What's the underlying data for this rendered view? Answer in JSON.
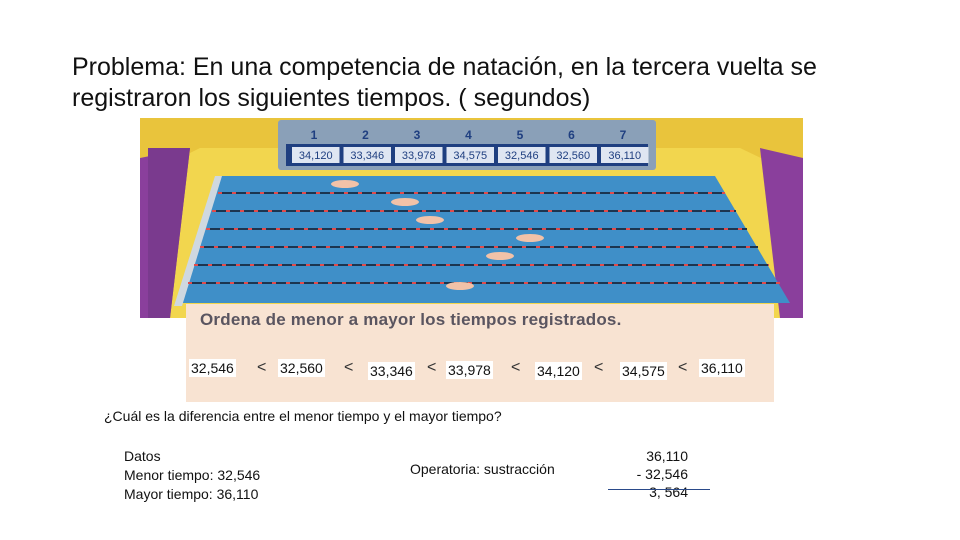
{
  "problem": {
    "line1": "Problema: En una competencia de natación, en la tercera vuelta se",
    "line2": "registraron los siguientes tiempos. ( segundos)"
  },
  "pool": {
    "lanes": [
      "1",
      "2",
      "3",
      "4",
      "5",
      "6",
      "7"
    ],
    "times": [
      "34,120",
      "33,346",
      "33,978",
      "34,575",
      "32,546",
      "32,560",
      "36,110"
    ],
    "colors": {
      "water": "#3f8fc8",
      "wall": "#7a3a8e",
      "deck": "#f1d24a",
      "board": "#1f3f80"
    }
  },
  "ordering": {
    "heading": "Ordena de menor a mayor los tiempos registrados.",
    "values": [
      "32,546",
      "32,560",
      "33,346",
      "33,978",
      "34,120",
      "34,575",
      "36,110"
    ],
    "separator": "<"
  },
  "question": "¿Cuál es la diferencia entre el menor tiempo y el mayor tiempo?",
  "datos": {
    "label": "Datos",
    "menor": "Menor tiempo: 32,546",
    "mayor": "Mayor tiempo: 36,110"
  },
  "operatoria": "Operatoria:  sustracción",
  "calculation": {
    "minuend": "36,110",
    "subtrahend": "-  32,546",
    "result": "3, 564"
  }
}
